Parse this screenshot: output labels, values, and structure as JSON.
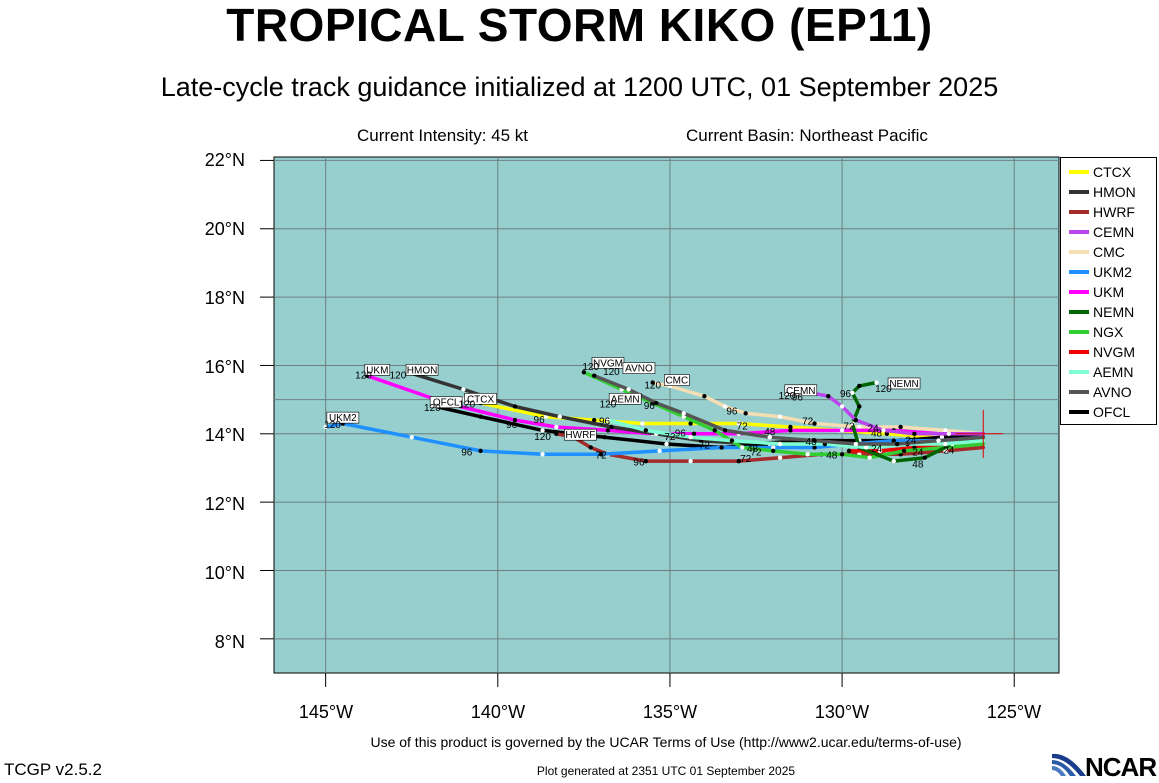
{
  "title": "TROPICAL STORM KIKO (EP11)",
  "subtitle": "Late-cycle track guidance initialized at 1200 UTC, 01 September 2025",
  "current_intensity": "Current Intensity: 45 kt",
  "current_basin": "Current Basin: Northeast Pacific",
  "terms": "Use of this product is governed by the UCAR Terms of Use (http://www2.ucar.edu/terms-of-use)",
  "version": "TCGP v2.5.2",
  "generated": "Plot generated at 2351 UTC   01 September 2025",
  "logo_text": "NCAR",
  "lat_labels": [
    "22°N",
    "20°N",
    "18°N",
    "16°N",
    "14°N",
    "12°N",
    "10°N",
    "8°N"
  ],
  "lon_labels": [
    "145°W",
    "140°W",
    "135°W",
    "130°W",
    "125°W"
  ],
  "colors": {
    "ocean": "#97cfcf",
    "grid": "#6e7f80"
  },
  "map": {
    "lon_min": -146.5,
    "lon_max": -123.7,
    "lat_min": 7.0,
    "lat_max": 22.1,
    "current_position": [
      -125.9,
      14.0
    ]
  },
  "legend": [
    {
      "name": "CTCX",
      "color": "#ffff00"
    },
    {
      "name": "HMON",
      "color": "#333333"
    },
    {
      "name": "HWRF",
      "color": "#a52a2a"
    },
    {
      "name": "CEMN",
      "color": "#bb44ee"
    },
    {
      "name": "CMC",
      "color": "#f5deb3"
    },
    {
      "name": "UKM2",
      "color": "#1e90ff"
    },
    {
      "name": "UKM",
      "color": "#ff00ff"
    },
    {
      "name": "NEMN",
      "color": "#006400"
    },
    {
      "name": "NGX",
      "color": "#32cd32"
    },
    {
      "name": "NVGM",
      "color": "#ee0000"
    },
    {
      "name": "AEMN",
      "color": "#7fffd4"
    },
    {
      "name": "AVNO",
      "color": "#555555"
    },
    {
      "name": "OFCL",
      "color": "#000000"
    }
  ],
  "tracks": [
    {
      "name": "CMC",
      "color": "#f5deb3",
      "label": "CMC",
      "points": [
        [
          -125.9,
          14.0
        ],
        [
          -127.0,
          14.1
        ],
        [
          -128.3,
          14.2
        ],
        [
          -129.5,
          14.2
        ],
        [
          -130.8,
          14.3
        ],
        [
          -131.8,
          14.5
        ],
        [
          -132.8,
          14.6
        ],
        [
          -133.4,
          14.8
        ],
        [
          -134.0,
          15.1
        ],
        [
          -135.0,
          15.4
        ],
        [
          -135.5,
          15.5
        ]
      ]
    },
    {
      "name": "CTCX",
      "color": "#ffff00",
      "label": "CTCX",
      "points": [
        [
          -125.9,
          13.8
        ],
        [
          -127.3,
          13.9
        ],
        [
          -128.7,
          14.0
        ],
        [
          -130.1,
          14.1
        ],
        [
          -131.5,
          14.2
        ],
        [
          -133.0,
          14.3
        ],
        [
          -134.4,
          14.3
        ],
        [
          -135.8,
          14.3
        ],
        [
          -137.2,
          14.4
        ],
        [
          -138.6,
          14.5
        ],
        [
          -140.5,
          14.9
        ],
        [
          -141.0,
          15.0
        ]
      ]
    },
    {
      "name": "UKM",
      "color": "#ff00ff",
      "label": "UKM",
      "points": [
        [
          -125.9,
          14.0
        ],
        [
          -127.2,
          14.0
        ],
        [
          -128.5,
          14.1
        ],
        [
          -130.0,
          14.1
        ],
        [
          -131.5,
          14.1
        ],
        [
          -133.0,
          14.0
        ],
        [
          -134.3,
          14.0
        ],
        [
          -135.5,
          14.0
        ],
        [
          -136.8,
          14.1
        ],
        [
          -138.3,
          14.2
        ],
        [
          -139.5,
          14.4
        ],
        [
          -141.5,
          14.9
        ],
        [
          -143.8,
          15.7
        ]
      ]
    },
    {
      "name": "HMON",
      "color": "#333333",
      "label": "HMON",
      "points": [
        [
          -125.9,
          13.9
        ],
        [
          -127.3,
          13.8
        ],
        [
          -128.6,
          13.7
        ],
        [
          -129.9,
          13.8
        ],
        [
          -131.3,
          13.8
        ],
        [
          -132.6,
          13.7
        ],
        [
          -134.1,
          13.8
        ],
        [
          -135.4,
          14.0
        ],
        [
          -136.7,
          14.2
        ],
        [
          -138.2,
          14.5
        ],
        [
          -139.5,
          14.8
        ],
        [
          -141.0,
          15.3
        ],
        [
          -142.6,
          15.8
        ]
      ]
    },
    {
      "name": "OFCL",
      "color": "#000000",
      "label": "OFCL",
      "points": [
        [
          -125.9,
          14.0
        ],
        [
          -127.1,
          13.9
        ],
        [
          -128.3,
          13.8
        ],
        [
          -129.5,
          13.8
        ],
        [
          -130.8,
          13.8
        ],
        [
          -132.1,
          13.7
        ],
        [
          -133.5,
          13.6
        ],
        [
          -135.1,
          13.7
        ],
        [
          -136.9,
          13.9
        ],
        [
          -138.7,
          14.1
        ],
        [
          -140.5,
          14.5
        ],
        [
          -141.8,
          14.8
        ]
      ]
    },
    {
      "name": "HWRF",
      "color": "#a52a2a",
      "label": "HWRF",
      "points": [
        [
          -125.9,
          13.6
        ],
        [
          -127.0,
          13.5
        ],
        [
          -128.3,
          13.4
        ],
        [
          -129.5,
          13.4
        ],
        [
          -130.6,
          13.4
        ],
        [
          -131.8,
          13.3
        ],
        [
          -133.0,
          13.2
        ],
        [
          -134.4,
          13.2
        ],
        [
          -135.7,
          13.2
        ],
        [
          -136.8,
          13.4
        ],
        [
          -137.3,
          13.6
        ],
        [
          -137.8,
          13.9
        ],
        [
          -138.3,
          14.0
        ]
      ]
    },
    {
      "name": "UKM2",
      "color": "#1e90ff",
      "label": "UKM2",
      "points": [
        [
          -125.9,
          13.9
        ],
        [
          -127.2,
          13.8
        ],
        [
          -128.5,
          13.8
        ],
        [
          -129.7,
          13.7
        ],
        [
          -130.8,
          13.6
        ],
        [
          -132.0,
          13.6
        ],
        [
          -133.5,
          13.6
        ],
        [
          -135.3,
          13.5
        ],
        [
          -137.0,
          13.4
        ],
        [
          -138.7,
          13.4
        ],
        [
          -140.5,
          13.5
        ],
        [
          -142.5,
          13.9
        ],
        [
          -144.5,
          14.3
        ],
        [
          -145.0,
          14.2
        ]
      ]
    },
    {
      "name": "NVGM",
      "color": "#ee0000",
      "label": "NVGM",
      "points": [
        [
          -125.9,
          13.8
        ],
        [
          -126.9,
          13.7
        ],
        [
          -127.9,
          13.6
        ],
        [
          -128.9,
          13.5
        ],
        [
          -129.8,
          13.5
        ]
      ]
    },
    {
      "name": "NGX",
      "color": "#32cd32",
      "label": "",
      "points": [
        [
          -125.9,
          13.7
        ],
        [
          -127.0,
          13.6
        ],
        [
          -128.2,
          13.5
        ],
        [
          -129.2,
          13.3
        ],
        [
          -130.0,
          13.4
        ],
        [
          -131.0,
          13.4
        ],
        [
          -132.0,
          13.5
        ],
        [
          -132.9,
          13.6
        ],
        [
          -133.7,
          14.1
        ],
        [
          -134.6,
          14.5
        ],
        [
          -135.5,
          14.9
        ],
        [
          -136.4,
          15.3
        ],
        [
          -137.5,
          15.8
        ]
      ]
    },
    {
      "name": "NEMN",
      "color": "#006400",
      "label": "NEMN",
      "points": [
        [
          -125.9,
          13.9
        ],
        [
          -126.8,
          13.7
        ],
        [
          -127.6,
          13.3
        ],
        [
          -128.5,
          13.2
        ],
        [
          -129.5,
          13.6
        ],
        [
          -129.7,
          14.3
        ],
        [
          -129.5,
          14.8
        ],
        [
          -129.7,
          15.2
        ],
        [
          -129.5,
          15.4
        ],
        [
          -129.0,
          15.5
        ]
      ]
    },
    {
      "name": "CEMN",
      "color": "#bb44ee",
      "label": "CEMN",
      "points": [
        [
          -125.9,
          14.0
        ],
        [
          -126.9,
          14.0
        ],
        [
          -127.9,
          14.0
        ],
        [
          -128.8,
          14.1
        ],
        [
          -129.6,
          14.4
        ],
        [
          -130.0,
          14.8
        ],
        [
          -130.4,
          15.1
        ],
        [
          -130.9,
          15.2
        ]
      ]
    },
    {
      "name": "AEMN",
      "color": "#7fffd4",
      "label": "AEMN",
      "points": [
        [
          -125.9,
          13.8
        ],
        [
          -127.0,
          13.7
        ],
        [
          -128.1,
          13.7
        ],
        [
          -129.3,
          13.6
        ],
        [
          -130.5,
          13.7
        ],
        [
          -131.8,
          13.7
        ],
        [
          -133.2,
          13.8
        ],
        [
          -134.4,
          13.9
        ],
        [
          -135.7,
          14.1
        ],
        [
          -136.8,
          14.4
        ]
      ]
    },
    {
      "name": "AVNO",
      "color": "#555555",
      "label": "AVNO",
      "points": [
        [
          -125.9,
          13.9
        ],
        [
          -127.2,
          13.8
        ],
        [
          -128.4,
          13.7
        ],
        [
          -129.6,
          13.7
        ],
        [
          -130.8,
          13.8
        ],
        [
          -132.1,
          13.9
        ],
        [
          -133.4,
          14.1
        ],
        [
          -134.6,
          14.6
        ],
        [
          -135.4,
          14.9
        ],
        [
          -136.2,
          15.3
        ],
        [
          -137.2,
          15.7
        ]
      ]
    }
  ],
  "track_labels": [
    {
      "text": "UKM",
      "lon": -143.5,
      "lat": 15.8,
      "box": true
    },
    {
      "text": "120",
      "lon": -143.9,
      "lat": 15.65,
      "box": false
    },
    {
      "text": "HMON",
      "lon": -142.2,
      "lat": 15.8,
      "box": true
    },
    {
      "text": "120",
      "lon": -142.9,
      "lat": 15.65,
      "box": false
    },
    {
      "text": "OFCL",
      "lon": -141.5,
      "lat": 14.85,
      "box": true
    },
    {
      "text": "120",
      "lon": -141.9,
      "lat": 14.7,
      "box": false
    },
    {
      "text": "CTCX",
      "lon": -140.5,
      "lat": 14.95,
      "box": true
    },
    {
      "text": "120",
      "lon": -140.9,
      "lat": 14.8,
      "box": false
    },
    {
      "text": "UKM2",
      "lon": -144.5,
      "lat": 14.4,
      "box": true
    },
    {
      "text": "120",
      "lon": -144.8,
      "lat": 14.2,
      "box": false
    },
    {
      "text": "NVGM",
      "lon": -136.8,
      "lat": 16.0,
      "box": true
    },
    {
      "text": "AVNO",
      "lon": -135.9,
      "lat": 15.85,
      "box": true
    },
    {
      "text": "120",
      "lon": -137.3,
      "lat": 15.9,
      "box": false
    },
    {
      "text": "120",
      "lon": -136.7,
      "lat": 15.75,
      "box": false
    },
    {
      "text": "CMC",
      "lon": -134.8,
      "lat": 15.5,
      "box": true
    },
    {
      "text": "120",
      "lon": -135.5,
      "lat": 15.35,
      "box": false
    },
    {
      "text": "AEMN",
      "lon": -136.3,
      "lat": 14.95,
      "box": true
    },
    {
      "text": "120",
      "lon": -136.8,
      "lat": 14.8,
      "box": false
    },
    {
      "text": "CEMN",
      "lon": -131.2,
      "lat": 15.2,
      "box": true
    },
    {
      "text": "120",
      "lon": -131.6,
      "lat": 15.05,
      "box": false
    },
    {
      "text": "NEMN",
      "lon": -128.2,
      "lat": 15.4,
      "box": true
    },
    {
      "text": "120",
      "lon": -128.8,
      "lat": 15.25,
      "box": false
    },
    {
      "text": "HWRF",
      "lon": -137.6,
      "lat": 13.9,
      "box": true
    },
    {
      "text": "120",
      "lon": -138.7,
      "lat": 13.85,
      "box": false
    },
    {
      "text": "96",
      "lon": -131.3,
      "lat": 15.0,
      "box": false
    },
    {
      "text": "96",
      "lon": -129.9,
      "lat": 15.1,
      "box": false
    },
    {
      "text": "96",
      "lon": -135.6,
      "lat": 14.75,
      "box": false
    },
    {
      "text": "96",
      "lon": -133.2,
      "lat": 14.6,
      "box": false
    },
    {
      "text": "96",
      "lon": -136.9,
      "lat": 14.3,
      "box": false
    },
    {
      "text": "96",
      "lon": -138.8,
      "lat": 14.35,
      "box": false
    },
    {
      "text": "96",
      "lon": -139.6,
      "lat": 14.2,
      "box": false
    },
    {
      "text": "96",
      "lon": -134.7,
      "lat": 13.95,
      "box": false
    },
    {
      "text": "96",
      "lon": -140.9,
      "lat": 13.4,
      "box": false
    },
    {
      "text": "96",
      "lon": -135.9,
      "lat": 13.1,
      "box": false
    },
    {
      "text": "72",
      "lon": -131.0,
      "lat": 14.3,
      "box": false
    },
    {
      "text": "72",
      "lon": -132.9,
      "lat": 14.15,
      "box": false
    },
    {
      "text": "72",
      "lon": -129.8,
      "lat": 14.15,
      "box": false
    },
    {
      "text": "72",
      "lon": -135.0,
      "lat": 13.85,
      "box": false
    },
    {
      "text": "72",
      "lon": -134.0,
      "lat": 13.6,
      "box": false
    },
    {
      "text": "72",
      "lon": -137.0,
      "lat": 13.3,
      "box": false
    },
    {
      "text": "72",
      "lon": -132.8,
      "lat": 13.2,
      "box": false
    },
    {
      "text": "72",
      "lon": -132.5,
      "lat": 13.4,
      "box": false
    },
    {
      "text": "48",
      "lon": -132.1,
      "lat": 14.0,
      "box": false
    },
    {
      "text": "48",
      "lon": -129.0,
      "lat": 13.95,
      "box": false
    },
    {
      "text": "48",
      "lon": -130.9,
      "lat": 13.7,
      "box": false
    },
    {
      "text": "48",
      "lon": -130.3,
      "lat": 13.3,
      "box": false
    },
    {
      "text": "48",
      "lon": -127.8,
      "lat": 13.05,
      "box": false
    },
    {
      "text": "48",
      "lon": -132.6,
      "lat": 13.5,
      "box": false
    },
    {
      "text": "24",
      "lon": -129.1,
      "lat": 14.1,
      "box": false
    },
    {
      "text": "24",
      "lon": -128.0,
      "lat": 13.75,
      "box": false
    },
    {
      "text": "24",
      "lon": -129.0,
      "lat": 13.5,
      "box": false
    },
    {
      "text": "24",
      "lon": -127.8,
      "lat": 13.4,
      "box": false
    },
    {
      "text": "24",
      "lon": -126.9,
      "lat": 13.45,
      "box": false
    }
  ]
}
